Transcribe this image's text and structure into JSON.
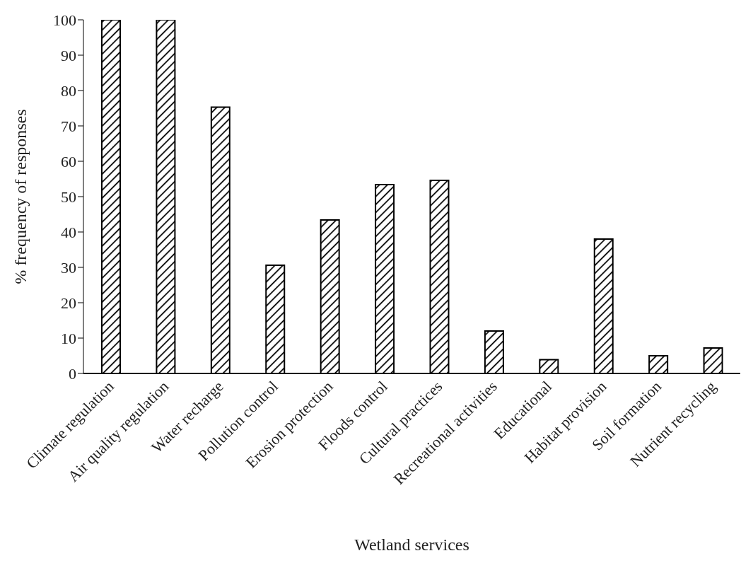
{
  "chart_data": {
    "type": "bar",
    "xlabel": "Wetland services",
    "ylabel": "% frequency of responses",
    "categories": [
      "Climate regulation",
      "Air quality regulation",
      "Water recharge",
      "Pollution control",
      "Erosion protection",
      "Floods control",
      "Cultural practices",
      "Recreational activities",
      "Educational",
      "Habitat provision",
      "Soil formation",
      "Nutrient recycling"
    ],
    "values": [
      100,
      100,
      75.3,
      30.6,
      43.4,
      53.4,
      54.6,
      12.0,
      3.9,
      38.0,
      5.0,
      7.2
    ],
    "color": "#000000",
    "ylim": [
      0,
      100
    ],
    "yticks": [
      0,
      10,
      20,
      30,
      40,
      50,
      60,
      70,
      80,
      90,
      100
    ],
    "grid": false,
    "legend": false
  }
}
